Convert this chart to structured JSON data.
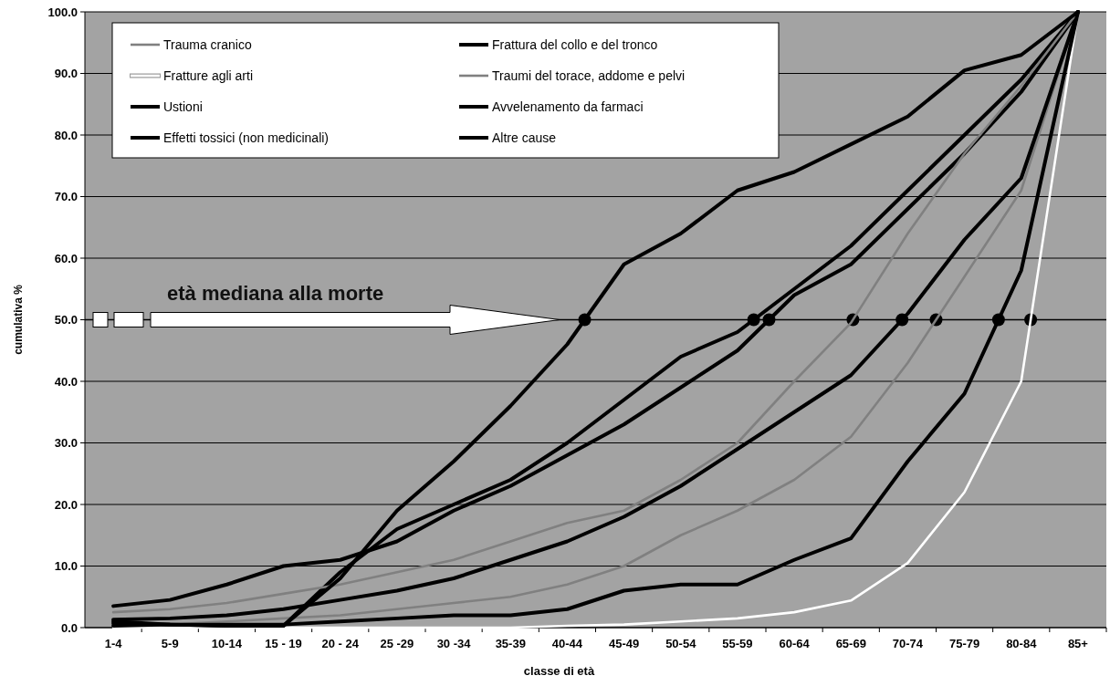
{
  "chart_data": {
    "type": "line",
    "xlabel": "classe di età",
    "ylabel": "cumulativa %",
    "categories": [
      "1-4",
      "5-9",
      "10-14",
      "15 - 19",
      "20 - 24",
      "25 -29",
      "30 -34",
      "35-39",
      "40-44",
      "45-49",
      "50-54",
      "55-59",
      "60-64",
      "65-69",
      "70-74",
      "75-79",
      "80-84",
      "85+"
    ],
    "ylim": [
      0,
      100
    ],
    "yticks": [
      {
        "value": 0,
        "label": "0.0"
      },
      {
        "value": 10,
        "label": "10.0"
      },
      {
        "value": 20,
        "label": "20.0"
      },
      {
        "value": 30,
        "label": "30.0"
      },
      {
        "value": 40,
        "label": "40.0"
      },
      {
        "value": 50,
        "label": "50.0"
      },
      {
        "value": 60,
        "label": "60.0"
      },
      {
        "value": 70,
        "label": "70.0"
      },
      {
        "value": 80,
        "label": "80.0"
      },
      {
        "value": 90,
        "label": "90.0"
      },
      {
        "value": 100,
        "label": "100.0"
      }
    ],
    "grid": "y",
    "legend": "top left",
    "marker": "none",
    "series": [
      {
        "name": "Trauma cranico",
        "color": "#808080",
        "values": [
          0.5,
          0.5,
          1,
          1.5,
          2,
          3,
          4,
          5,
          7,
          10,
          15,
          19,
          24,
          31,
          43,
          57,
          71,
          100
        ]
      },
      {
        "name": "Fratture agli arti",
        "color": "#ffffff",
        "values": [
          0,
          0,
          0,
          0,
          0,
          0,
          0,
          0,
          0.3,
          0.5,
          1,
          1.5,
          2.5,
          4.4,
          10.5,
          22,
          40,
          100
        ]
      },
      {
        "name": "Ustioni",
        "color": "#000000",
        "values": [
          3.5,
          4.5,
          7,
          10,
          11,
          14,
          19,
          23,
          28,
          33,
          39,
          45,
          54,
          59,
          68,
          77,
          87,
          100
        ]
      },
      {
        "name": "Effetti tossici (non medicinali)",
        "color": "#000000",
        "values": [
          0.3,
          0.5,
          0.3,
          0.3,
          9,
          16,
          20,
          24,
          30,
          37,
          44,
          48,
          55,
          62,
          71,
          80,
          89,
          100
        ]
      },
      {
        "name": "Frattura del collo e del tronco",
        "color": "#000000",
        "values": [
          1.3,
          1.5,
          2,
          3,
          4.5,
          6,
          8,
          11,
          14,
          18,
          23,
          29,
          35,
          41,
          51,
          63,
          73,
          100
        ]
      },
      {
        "name": "Traumi del torace, addome e pelvi",
        "color": "#808080",
        "values": [
          2.5,
          3,
          4,
          5.5,
          7,
          9,
          11,
          14,
          17,
          19,
          24,
          30,
          40,
          49.5,
          64,
          77,
          88,
          100
        ]
      },
      {
        "name": "Avvelenamento da farmaci",
        "color": "#000000",
        "values": [
          1,
          0.5,
          0.3,
          0.3,
          8,
          19,
          27,
          36,
          46,
          59,
          64,
          71,
          74,
          78.5,
          83,
          90.5,
          93,
          100
        ]
      },
      {
        "name": "Altre cause",
        "color": "#000000",
        "values": [
          0.7,
          0.5,
          0.5,
          0.5,
          1,
          1.5,
          2,
          2,
          3,
          6,
          7,
          7,
          11,
          14.5,
          27,
          38,
          58,
          100
        ]
      }
    ],
    "ref_lines": [
      {
        "axis": "y",
        "value": 50,
        "label": "età mediana alla morte",
        "color": "#000000"
      }
    ]
  }
}
